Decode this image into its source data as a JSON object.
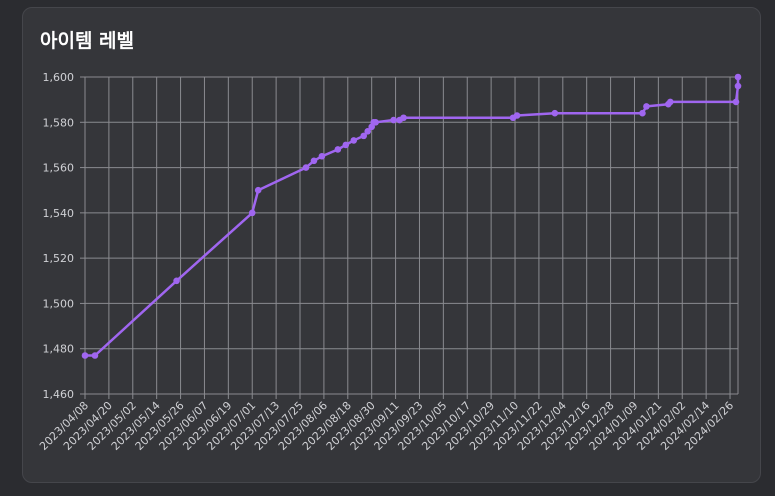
{
  "panel": {
    "title": "아이템 레벨"
  },
  "colors": {
    "page_bg": "#2b2c30",
    "card_bg": "#35363a",
    "line": "#a066f0",
    "grid": "#8a8b90",
    "text": "#d0d1d5"
  },
  "chart_data": {
    "type": "line",
    "title": "아이템 레벨",
    "xlabel": "",
    "ylabel": "",
    "ylim": [
      1460,
      1600
    ],
    "yticks": [
      1460,
      1480,
      1500,
      1520,
      1540,
      1560,
      1580,
      1600
    ],
    "xlim": [
      "2023/04/08",
      "2024/03/01"
    ],
    "xticks": [
      "2023/04/08",
      "2023/04/20",
      "2023/05/02",
      "2023/05/14",
      "2023/05/26",
      "2023/06/07",
      "2023/06/19",
      "2023/07/01",
      "2023/07/13",
      "2023/07/25",
      "2023/08/06",
      "2023/08/18",
      "2023/08/30",
      "2023/09/11",
      "2023/09/23",
      "2023/10/05",
      "2023/10/17",
      "2023/10/29",
      "2023/11/10",
      "2023/11/22",
      "2023/12/04",
      "2023/12/16",
      "2023/12/28",
      "2024/01/09",
      "2024/01/21",
      "2024/02/02",
      "2024/02/14",
      "2024/02/26"
    ],
    "grid": true,
    "legend": "none",
    "x": [
      "2023/04/08",
      "2023/04/13",
      "2023/05/24",
      "2023/07/01",
      "2023/07/04",
      "2023/07/28",
      "2023/08/01",
      "2023/08/05",
      "2023/08/13",
      "2023/08/17",
      "2023/08/21",
      "2023/08/26",
      "2023/08/28",
      "2023/08/30",
      "2023/08/31",
      "2023/09/01",
      "2023/09/10",
      "2023/09/13",
      "2023/09/15",
      "2023/11/09",
      "2023/11/11",
      "2023/11/30",
      "2024/01/13",
      "2024/01/15",
      "2024/01/26",
      "2024/01/27",
      "2024/02/29",
      "2024/03/01",
      "2024/03/01"
    ],
    "values": [
      1477,
      1477,
      1510,
      1540,
      1550,
      1560,
      1563,
      1565,
      1568,
      1570,
      1572,
      1574,
      1576,
      1578,
      1580,
      1580,
      1581,
      1581,
      1582,
      1582,
      1583,
      1584,
      1584,
      1587,
      1588,
      1589,
      1589,
      1596,
      1600
    ]
  }
}
